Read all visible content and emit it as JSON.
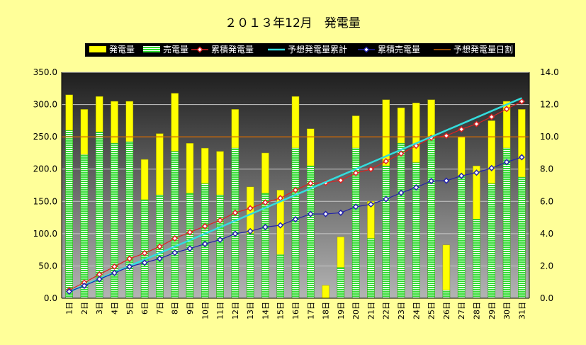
{
  "chart_data": {
    "type": "bar",
    "title": "２０１３年12月　発電量",
    "categories": [
      "1日",
      "2日",
      "3日",
      "4日",
      "5日",
      "6日",
      "7日",
      "8日",
      "9日",
      "10日",
      "11日",
      "12日",
      "13日",
      "14日",
      "15日",
      "16日",
      "17日",
      "18日",
      "19日",
      "20日",
      "21日",
      "22日",
      "23日",
      "24日",
      "25日",
      "26日",
      "27日",
      "28日",
      "29日",
      "30日",
      "31日"
    ],
    "left_axis": {
      "min": 0,
      "max": 350,
      "step": 50,
      "tick_labels": [
        "0.0",
        "50.0",
        "100.0",
        "150.0",
        "200.0",
        "250.0",
        "300.0",
        "350.0"
      ]
    },
    "right_axis": {
      "min": 0,
      "max": 14,
      "step": 2,
      "tick_labels": [
        "0.0",
        "2.0",
        "4.0",
        "6.0",
        "8.0",
        "10.0",
        "12.0",
        "14.0"
      ]
    },
    "legend_position": "top",
    "series": [
      {
        "name": "発電量",
        "kind": "bar",
        "axis": "right",
        "color": "#ffff00",
        "values": [
          12.6,
          11.7,
          12.5,
          12.2,
          12.2,
          8.6,
          10.2,
          12.7,
          9.6,
          9.3,
          9.1,
          11.7,
          6.9,
          9.0,
          6.7,
          12.5,
          10.5,
          0.8,
          3.8,
          11.3,
          6.0,
          12.3,
          11.8,
          12.1,
          12.3,
          3.3,
          10.0,
          8.2,
          11.0,
          12.2,
          11.7
        ]
      },
      {
        "name": "売電量",
        "kind": "bar",
        "axis": "right",
        "color": "#33dd33",
        "values": [
          10.4,
          8.9,
          10.3,
          9.6,
          9.7,
          6.1,
          6.4,
          9.1,
          6.5,
          7.1,
          6.4,
          9.3,
          4.0,
          6.5,
          2.7,
          9.3,
          8.2,
          0.0,
          1.9,
          9.3,
          3.7,
          8.2,
          9.6,
          8.4,
          9.9,
          0.5,
          7.6,
          4.9,
          7.1,
          9.3,
          7.5
        ]
      },
      {
        "name": "累積発電量",
        "kind": "line",
        "axis": "left",
        "color": "#dd2222",
        "values": [
          12.6,
          24.3,
          36.8,
          49.0,
          61.2,
          69.8,
          80.0,
          92.7,
          102.3,
          111.6,
          120.7,
          132.4,
          139.3,
          148.3,
          155.0,
          167.5,
          178.0,
          178.8,
          182.6,
          193.9,
          199.9,
          212.2,
          224.0,
          236.1,
          248.4,
          251.7,
          261.7,
          269.9,
          280.9,
          293.1,
          304.8
        ]
      },
      {
        "name": "予想発電量累計",
        "kind": "line",
        "axis": "left",
        "color": "#33dddd",
        "values": [
          10.0,
          20.0,
          30.0,
          40.0,
          50.0,
          60.0,
          70.0,
          80.0,
          90.0,
          100.0,
          110.0,
          120.0,
          130.0,
          140.0,
          150.0,
          160.0,
          170.0,
          180.0,
          190.0,
          200.0,
          210.0,
          220.0,
          230.0,
          240.0,
          250.0,
          260.0,
          270.0,
          280.0,
          290.0,
          300.0,
          310.0
        ]
      },
      {
        "name": "累積売電量",
        "kind": "line",
        "axis": "left",
        "color": "#2222aa",
        "values": [
          10.4,
          19.3,
          29.6,
          39.2,
          48.9,
          55.0,
          61.4,
          70.5,
          77.0,
          84.1,
          90.5,
          99.8,
          103.8,
          110.3,
          113.0,
          122.3,
          130.5,
          130.5,
          132.4,
          141.7,
          145.4,
          153.6,
          163.2,
          171.6,
          181.5,
          182.0,
          189.6,
          194.5,
          201.6,
          210.9,
          218.4
        ]
      },
      {
        "name": "予想発電量日割",
        "kind": "hline",
        "axis": "right",
        "color": "#cc6600",
        "value": 10.0
      }
    ]
  }
}
